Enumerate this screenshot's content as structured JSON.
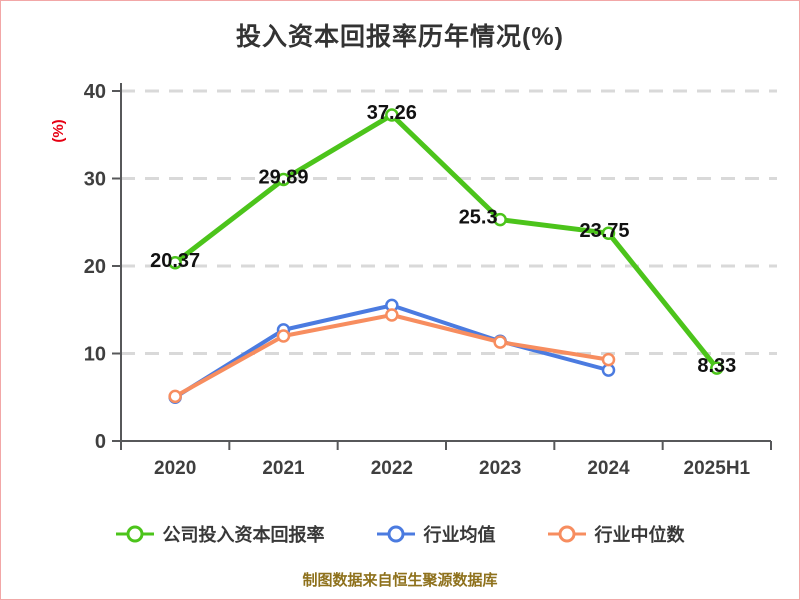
{
  "page": {
    "background": "#ffffff",
    "border_color": "#f2a7a7"
  },
  "chart_data": {
    "type": "line",
    "title": "投入资本回报率历年情况(%)",
    "title_color": "#333333",
    "ylabel": "(%)",
    "ylabel_color": "#e60012",
    "xlabel": "",
    "categories": [
      "2020",
      "2021",
      "2022",
      "2023",
      "2024",
      "2025H1"
    ],
    "ylim": [
      0,
      40
    ],
    "yticks": [
      0,
      10,
      20,
      30,
      40
    ],
    "grid": "horizontal-dashed",
    "grid_color": "#d9d9d9",
    "axis_color": "#57585a",
    "tick_label_color": "#3f3f3f",
    "data_label_color": "#111111",
    "legend_position": "bottom",
    "series": [
      {
        "name": "公司投入资本回报率",
        "color": "#4cc41b",
        "values": [
          20.37,
          29.89,
          37.26,
          25.3,
          23.75,
          8.33
        ],
        "labels": [
          "20.37",
          "29.89",
          "37.26",
          "25.3",
          "23.75",
          "8.33"
        ],
        "label_dx": [
          0,
          0,
          0,
          -22,
          -4,
          0
        ]
      },
      {
        "name": "行业均值",
        "color": "#4b7be0",
        "values": [
          5.0,
          12.7,
          15.5,
          11.4,
          8.1
        ]
      },
      {
        "name": "行业中位数",
        "color": "#f78d5f",
        "values": [
          5.1,
          12.0,
          14.4,
          11.3,
          9.3
        ]
      }
    ],
    "source_note": "制图数据来自恒生聚源数据库",
    "source_note_color": "#8e711c"
  }
}
